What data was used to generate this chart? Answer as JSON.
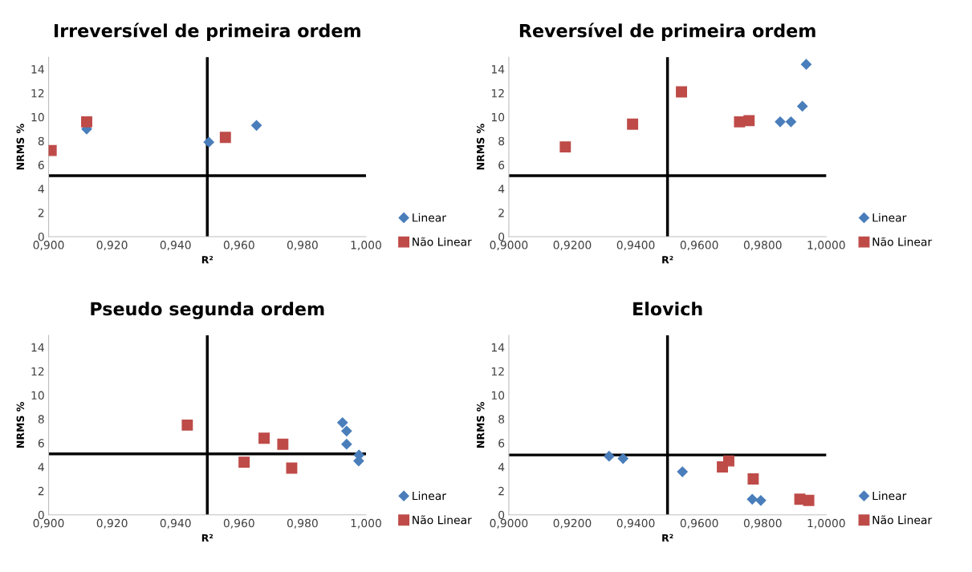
{
  "chart_data": [
    {
      "type": "scatter",
      "title": "Irreversível de primeira ordem",
      "xlabel": "R²",
      "ylabel": "NRMS %",
      "xlim": [
        0.9,
        1.0
      ],
      "ylim": [
        0,
        15
      ],
      "xticks": [
        {
          "value": 0.9,
          "label": "0,900"
        },
        {
          "value": 0.92,
          "label": "0,920"
        },
        {
          "value": 0.94,
          "label": "0,940"
        },
        {
          "value": 0.96,
          "label": "0,960"
        },
        {
          "value": 0.98,
          "label": "0,980"
        },
        {
          "value": 1.0,
          "label": "1,000"
        }
      ],
      "yticks": [
        0,
        2,
        4,
        6,
        8,
        10,
        12,
        14
      ],
      "grid": false,
      "legend": "right",
      "ref_lines": [
        {
          "axis": "x",
          "value": 0.95,
          "color": "#000000",
          "line_style": "solid"
        },
        {
          "axis": "y",
          "value": 5.1,
          "color": "#000000",
          "line_style": "solid"
        }
      ],
      "series": [
        {
          "name": "Linear",
          "color": "#4a7ebb",
          "marker": "diamond",
          "x": [
            0.912,
            0.9505,
            0.9655
          ],
          "values": [
            9.0,
            7.9,
            9.3
          ]
        },
        {
          "name": "Não Linear",
          "color": "#be4b48",
          "marker": "square",
          "x": [
            0.9008,
            0.912,
            0.9557
          ],
          "values": [
            7.2,
            9.6,
            8.3
          ]
        }
      ]
    },
    {
      "type": "scatter",
      "title": "Reversível de primeira ordem",
      "xlabel": "R²",
      "ylabel": "NRMS %",
      "xlim": [
        0.9,
        1.0
      ],
      "ylim": [
        0,
        15
      ],
      "xticks": [
        {
          "value": 0.9,
          "label": "0,9000"
        },
        {
          "value": 0.92,
          "label": "0,9200"
        },
        {
          "value": 0.94,
          "label": "0,9400"
        },
        {
          "value": 0.96,
          "label": "0,9600"
        },
        {
          "value": 0.98,
          "label": "0,9800"
        },
        {
          "value": 1.0,
          "label": "1,0000"
        }
      ],
      "yticks": [
        0,
        2,
        4,
        6,
        8,
        10,
        12,
        14
      ],
      "grid": false,
      "legend": "right",
      "ref_lines": [
        {
          "axis": "x",
          "value": 0.95,
          "color": "#000000",
          "line_style": "solid"
        },
        {
          "axis": "y",
          "value": 5.1,
          "color": "#000000",
          "line_style": "solid"
        }
      ],
      "series": [
        {
          "name": "Linear",
          "color": "#4a7ebb",
          "marker": "diamond",
          "x": [
            0.9855,
            0.9889,
            0.9925,
            0.9937
          ],
          "values": [
            9.6,
            9.6,
            10.9,
            14.4
          ]
        },
        {
          "name": "Não Linear",
          "color": "#be4b48",
          "marker": "square",
          "x": [
            0.9178,
            0.939,
            0.9544,
            0.9727,
            0.9757
          ],
          "values": [
            7.5,
            9.4,
            12.1,
            9.6,
            9.7
          ]
        }
      ]
    },
    {
      "type": "scatter",
      "title": "Pseudo segunda ordem",
      "xlabel": "R²",
      "ylabel": "NRMS %",
      "xlim": [
        0.9,
        1.0
      ],
      "ylim": [
        0,
        15
      ],
      "xticks": [
        {
          "value": 0.9,
          "label": "0,900"
        },
        {
          "value": 0.92,
          "label": "0,920"
        },
        {
          "value": 0.94,
          "label": "0,940"
        },
        {
          "value": 0.96,
          "label": "0,960"
        },
        {
          "value": 0.98,
          "label": "0,980"
        },
        {
          "value": 1.0,
          "label": "1,000"
        }
      ],
      "yticks": [
        0,
        2,
        4,
        6,
        8,
        10,
        12,
        14
      ],
      "grid": false,
      "legend": "right",
      "ref_lines": [
        {
          "axis": "x",
          "value": 0.95,
          "color": "#000000",
          "line_style": "solid"
        },
        {
          "axis": "y",
          "value": 5.1,
          "color": "#000000",
          "line_style": "solid"
        }
      ],
      "series": [
        {
          "name": "Linear",
          "color": "#4a7ebb",
          "marker": "diamond",
          "x": [
            0.9926,
            0.9939,
            0.9939,
            0.9978,
            0.9977
          ],
          "values": [
            7.7,
            7.0,
            5.9,
            5.0,
            4.5
          ]
        },
        {
          "name": "Não Linear",
          "color": "#be4b48",
          "marker": "square",
          "x": [
            0.9437,
            0.9616,
            0.9679,
            0.9738,
            0.9766
          ],
          "values": [
            7.5,
            4.4,
            6.4,
            5.9,
            3.9
          ]
        }
      ]
    },
    {
      "type": "scatter",
      "title": "Elovich",
      "xlabel": "R²",
      "ylabel": "NRMS %",
      "xlim": [
        0.9,
        1.0
      ],
      "ylim": [
        0,
        15
      ],
      "xticks": [
        {
          "value": 0.9,
          "label": "0,9000"
        },
        {
          "value": 0.92,
          "label": "0,9200"
        },
        {
          "value": 0.94,
          "label": "0,9400"
        },
        {
          "value": 0.96,
          "label": "0,9600"
        },
        {
          "value": 0.98,
          "label": "0,9800"
        },
        {
          "value": 1.0,
          "label": "1,0000"
        }
      ],
      "yticks": [
        0,
        2,
        4,
        6,
        8,
        10,
        12,
        14
      ],
      "grid": false,
      "legend": "right",
      "ref_lines": [
        {
          "axis": "x",
          "value": 0.95,
          "color": "#000000",
          "line_style": "solid"
        },
        {
          "axis": "y",
          "value": 5.0,
          "color": "#000000",
          "line_style": "solid"
        }
      ],
      "series": [
        {
          "name": "Linear",
          "color": "#4a7ebb",
          "marker": "diamond",
          "x": [
            0.9316,
            0.936,
            0.9547,
            0.9767,
            0.9794
          ],
          "values": [
            4.9,
            4.7,
            3.6,
            1.3,
            1.2
          ]
        },
        {
          "name": "Não Linear",
          "color": "#be4b48",
          "marker": "square",
          "x": [
            0.9673,
            0.9693,
            0.977,
            0.9917,
            0.9945
          ],
          "values": [
            4.0,
            4.5,
            3.0,
            1.3,
            1.2
          ]
        }
      ]
    }
  ]
}
